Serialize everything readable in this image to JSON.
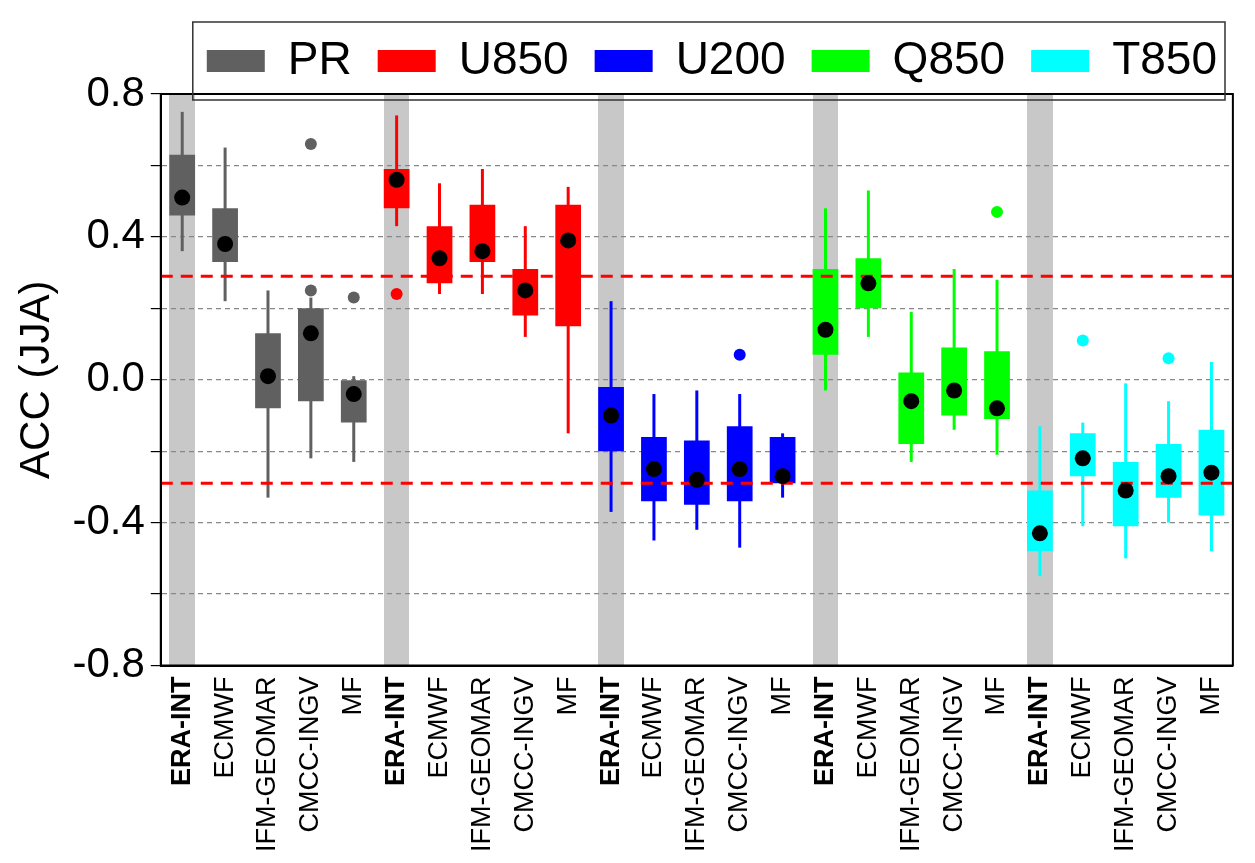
{
  "chart_data": {
    "type": "box",
    "ylabel": "ACC (JJA)",
    "categories": [
      "ERA-INT",
      "ECMWF",
      "IFM-GEOMAR",
      "CMCC-INGV",
      "MF",
      "ERA-INT",
      "ECMWF",
      "IFM-GEOMAR",
      "CMCC-INGV",
      "MF",
      "ERA-INT",
      "ECMWF",
      "IFM-GEOMAR",
      "CMCC-INGV",
      "MF",
      "ERA-INT",
      "ECMWF",
      "IFM-GEOMAR",
      "CMCC-INGV",
      "MF",
      "ERA-INT",
      "ECMWF",
      "IFM-GEOMAR",
      "CMCC-INGV",
      "MF"
    ],
    "ylim": [
      -0.8,
      0.8
    ],
    "yticks": [
      -0.8,
      {
        "value": -0.6,
        "label": null
      },
      -0.4,
      {
        "value": -0.2,
        "label": null
      },
      {
        "value": 0,
        "label": "0.0"
      },
      {
        "value": 0.2,
        "label": null
      },
      0.4,
      {
        "value": 0.6,
        "label": null
      },
      0.8
    ],
    "grid": "y",
    "legend": "top right",
    "ref_lines": [
      {
        "axis": "y",
        "value": 0.29,
        "color": "#ff0000",
        "line_style": "dashed"
      },
      {
        "axis": "y",
        "value": -0.29,
        "color": "#ff0000",
        "line_style": "dashed"
      }
    ],
    "series": [
      {
        "name": "PR",
        "color": "#606060",
        "boxes": [
          {
            "low": 0.36,
            "q1": 0.46,
            "median": 0.51,
            "q3": 0.63,
            "high": 0.75
          },
          {
            "low": 0.22,
            "q1": 0.33,
            "median": 0.38,
            "q3": 0.48,
            "high": 0.65
          },
          {
            "low": -0.33,
            "q1": -0.08,
            "median": 0.01,
            "q3": 0.13,
            "high": 0.25
          },
          {
            "low": -0.22,
            "q1": -0.06,
            "median": 0.13,
            "q3": 0.2,
            "high": 0.23,
            "outliers": [
              0.66,
              0.25
            ]
          },
          {
            "low": -0.23,
            "q1": -0.12,
            "median": -0.04,
            "q3": 0,
            "high": 0.01,
            "outliers": [
              0.23
            ]
          },
          null,
          null,
          null,
          null,
          null,
          null,
          null,
          null,
          null,
          null,
          null,
          null,
          null,
          null,
          null,
          null,
          null,
          null,
          null,
          null
        ]
      },
      {
        "name": "U850",
        "color": "#ff0000",
        "boxes": [
          null,
          null,
          null,
          null,
          null,
          {
            "low": 0.43,
            "q1": 0.48,
            "median": 0.56,
            "q3": 0.59,
            "high": 0.74,
            "outliers": [
              0.24
            ]
          },
          {
            "low": 0.24,
            "q1": 0.27,
            "median": 0.34,
            "q3": 0.43,
            "high": 0.55
          },
          {
            "low": 0.24,
            "q1": 0.33,
            "median": 0.36,
            "q3": 0.49,
            "high": 0.59
          },
          {
            "low": 0.12,
            "q1": 0.18,
            "median": 0.25,
            "q3": 0.31,
            "high": 0.43
          },
          {
            "low": -0.15,
            "q1": 0.15,
            "median": 0.39,
            "q3": 0.49,
            "high": 0.54
          },
          null,
          null,
          null,
          null,
          null,
          null,
          null,
          null,
          null,
          null,
          null,
          null,
          null,
          null,
          null
        ]
      },
      {
        "name": "U200",
        "color": "#0000ff",
        "boxes": [
          null,
          null,
          null,
          null,
          null,
          null,
          null,
          null,
          null,
          null,
          {
            "low": -0.37,
            "q1": -0.2,
            "median": -0.1,
            "q3": -0.02,
            "high": 0.22
          },
          {
            "low": -0.45,
            "q1": -0.34,
            "median": -0.25,
            "q3": -0.16,
            "high": -0.04
          },
          {
            "low": -0.42,
            "q1": -0.35,
            "median": -0.28,
            "q3": -0.17,
            "high": -0.03
          },
          {
            "low": -0.47,
            "q1": -0.34,
            "median": -0.25,
            "q3": -0.13,
            "high": -0.04,
            "outliers": [
              0.07
            ]
          },
          {
            "low": -0.33,
            "q1": -0.29,
            "median": -0.27,
            "q3": -0.16,
            "high": -0.15
          },
          null,
          null,
          null,
          null,
          null,
          null,
          null,
          null,
          null,
          null
        ]
      },
      {
        "name": "Q850",
        "color": "#00ff00",
        "boxes": [
          null,
          null,
          null,
          null,
          null,
          null,
          null,
          null,
          null,
          null,
          null,
          null,
          null,
          null,
          null,
          {
            "low": -0.03,
            "q1": 0.07,
            "median": 0.14,
            "q3": 0.31,
            "high": 0.48
          },
          {
            "low": 0.12,
            "q1": 0.2,
            "median": 0.27,
            "q3": 0.34,
            "high": 0.53
          },
          {
            "low": -0.23,
            "q1": -0.18,
            "median": -0.06,
            "q3": 0.02,
            "high": 0.19
          },
          {
            "low": -0.14,
            "q1": -0.1,
            "median": -0.03,
            "q3": 0.09,
            "high": 0.31
          },
          {
            "low": -0.21,
            "q1": -0.11,
            "median": -0.08,
            "q3": 0.08,
            "high": 0.28,
            "outliers": [
              0.47
            ]
          },
          null,
          null,
          null,
          null,
          null
        ]
      },
      {
        "name": "T850",
        "color": "#00ffff",
        "boxes": [
          null,
          null,
          null,
          null,
          null,
          null,
          null,
          null,
          null,
          null,
          null,
          null,
          null,
          null,
          null,
          null,
          null,
          null,
          null,
          null,
          {
            "low": -0.55,
            "q1": -0.48,
            "median": -0.43,
            "q3": -0.31,
            "high": -0.13
          },
          {
            "low": -0.41,
            "q1": -0.27,
            "median": -0.22,
            "q3": -0.15,
            "high": -0.12,
            "outliers": [
              0.11
            ]
          },
          {
            "low": -0.5,
            "q1": -0.41,
            "median": -0.31,
            "q3": -0.23,
            "high": -0.01
          },
          {
            "low": -0.4,
            "q1": -0.33,
            "median": -0.27,
            "q3": -0.18,
            "high": -0.06,
            "outliers": [
              0.06
            ]
          },
          {
            "low": -0.48,
            "q1": -0.38,
            "median": -0.26,
            "q3": -0.14,
            "high": 0.05
          }
        ]
      }
    ]
  }
}
